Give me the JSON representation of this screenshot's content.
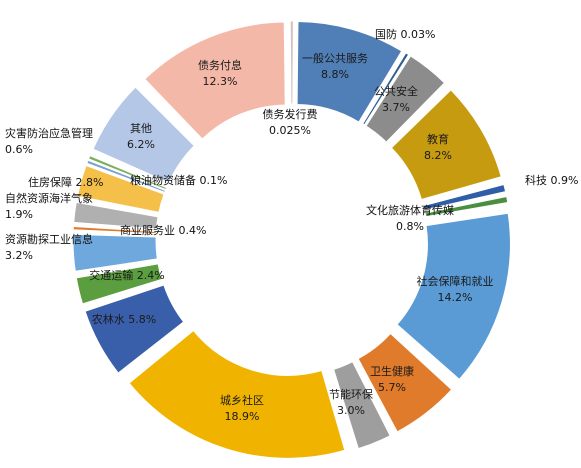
{
  "chart_data": {
    "type": "pie",
    "variant": "exploded-donut",
    "title": "",
    "slices": [
      {
        "name": "一般公共服务",
        "value": 8.8,
        "label": "8.8%",
        "color": "#4f7fb6"
      },
      {
        "name": "国防",
        "value": 0.03,
        "label": "0.03%",
        "color": "#2e5d8c"
      },
      {
        "name": "公共安全",
        "value": 3.7,
        "label": "3.7%",
        "color": "#8c8c8c"
      },
      {
        "name": "教育",
        "value": 8.2,
        "label": "8.2%",
        "color": "#c79b10"
      },
      {
        "name": "科技",
        "value": 0.9,
        "label": "0.9%",
        "color": "#2f5ea8"
      },
      {
        "name": "文化旅游体育传媒",
        "value": 0.8,
        "label": "0.8%",
        "color": "#4a8f3f"
      },
      {
        "name": "社会保障和就业",
        "value": 14.2,
        "label": "14.2%",
        "color": "#5b9bd5"
      },
      {
        "name": "卫生健康",
        "value": 5.7,
        "label": "5.7%",
        "color": "#e07b2c"
      },
      {
        "name": "节能环保",
        "value": 3.0,
        "label": "3.0%",
        "color": "#9e9e9e"
      },
      {
        "name": "城乡社区",
        "value": 18.9,
        "label": "18.9%",
        "color": "#f0b400"
      },
      {
        "name": "农林水",
        "value": 5.8,
        "label": "5.8%",
        "color": "#3a5faa"
      },
      {
        "name": "交通运输",
        "value": 2.4,
        "label": "2.4%",
        "color": "#5a9e3f"
      },
      {
        "name": "资源勘探工业信息",
        "value": 3.2,
        "label": "3.2%",
        "color": "#6fa8dc"
      },
      {
        "name": "商业服务业",
        "value": 0.4,
        "label": "0.4%",
        "color": "#e07b2c"
      },
      {
        "name": "自然资源海洋气象",
        "value": 1.9,
        "label": "1.9%",
        "color": "#b0b0b0"
      },
      {
        "name": "住房保障",
        "value": 2.8,
        "label": "2.8%",
        "color": "#f5c04a"
      },
      {
        "name": "粮油物资储备",
        "value": 0.1,
        "label": "0.1%",
        "color": "#7aa0d0"
      },
      {
        "name": "灾害防治应急管理",
        "value": 0.6,
        "label": "0.6%",
        "color": "#7bb05a"
      },
      {
        "name": "其他",
        "value": 6.2,
        "label": "6.2%",
        "color": "#b4c7e7"
      },
      {
        "name": "债务付息",
        "value": 12.3,
        "label": "12.3%",
        "color": "#f4b8a8"
      },
      {
        "name": "债务发行费",
        "value": 0.025,
        "label": "0.025%",
        "color": "#d6c2bd"
      }
    ]
  }
}
